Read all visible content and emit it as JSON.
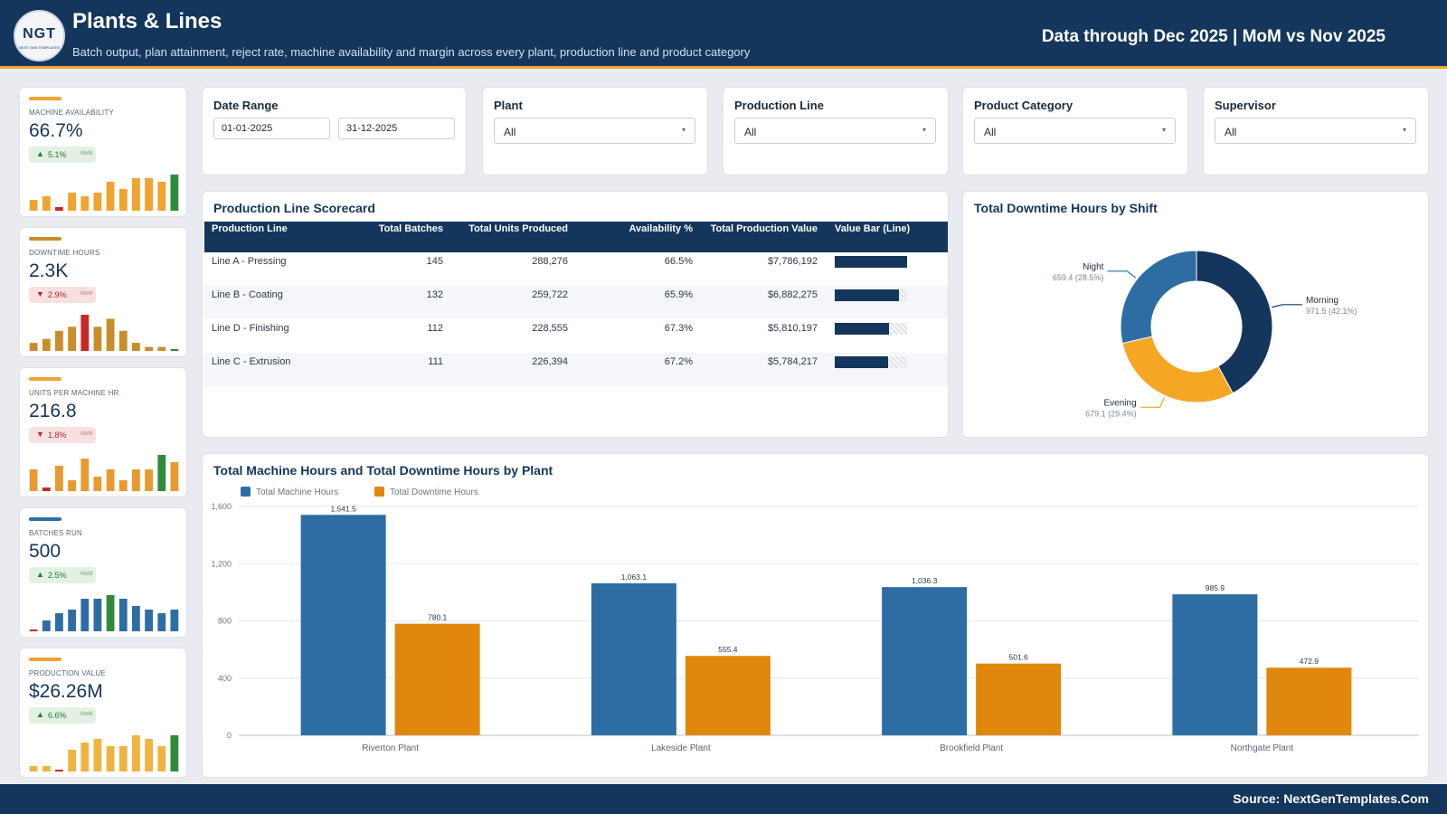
{
  "header": {
    "logo_text": "NGT",
    "logo_small": "NEXT GEN TEMPLATES",
    "title": "Plants & Lines",
    "subtitle": "Batch output, plan attainment, reject rate, machine availability and margin across every plant, production line and product category",
    "period": "Data through Dec 2025 | MoM vs Nov 2025"
  },
  "kpis": [
    {
      "label": "MACHINE AVAILABILITY",
      "value": "66.7%",
      "direction": "up",
      "change": "5.1%",
      "mom": "MoM",
      "accent": "#f0a330",
      "spark": [
        3,
        4,
        1,
        5,
        4,
        5,
        8,
        6,
        9,
        9,
        8,
        10
      ],
      "spark_colors": [
        "#f0a330",
        "#f0a330",
        "#c62828",
        "#f0a330",
        "#f0a330",
        "#f0a330",
        "#f0a330",
        "#f0a330",
        "#f0a330",
        "#f0a330",
        "#f0a330",
        "#2e8b3a"
      ]
    },
    {
      "label": "DOWNTIME HOURS",
      "value": "2.3K",
      "direction": "down",
      "change": "2.9%",
      "mom": "MoM",
      "accent": "#c98d2c",
      "spark": [
        2,
        3,
        5,
        6,
        9,
        6,
        8,
        5,
        2,
        1,
        1,
        0.4
      ],
      "spark_colors": [
        "#c98d2c",
        "#c98d2c",
        "#c98d2c",
        "#c98d2c",
        "#c62828",
        "#c98d2c",
        "#c98d2c",
        "#c98d2c",
        "#c98d2c",
        "#c98d2c",
        "#c98d2c",
        "#2e8b3a"
      ]
    },
    {
      "label": "UNITS PER MACHINE HR",
      "value": "216.8",
      "direction": "down",
      "change": "1.8%",
      "mom": "MoM",
      "accent": "#f0a330",
      "spark": [
        6,
        1,
        7,
        3,
        9,
        4,
        6,
        3,
        6,
        6,
        10,
        8
      ],
      "spark_colors": [
        "#e89a30",
        "#c62828",
        "#e89a30",
        "#e89a30",
        "#e89a30",
        "#e89a30",
        "#e89a30",
        "#e89a30",
        "#e89a30",
        "#e89a30",
        "#2e8b3a",
        "#e89a30"
      ]
    },
    {
      "label": "BATCHES RUN",
      "value": "500",
      "direction": "up",
      "change": "2.5%",
      "mom": "MoM",
      "accent": "#2e6da4",
      "spark": [
        0.5,
        3,
        5,
        6,
        9,
        9,
        10,
        9,
        7,
        6,
        5,
        6
      ],
      "spark_colors": [
        "#c62828",
        "#2e6da4",
        "#2e6da4",
        "#2e6da4",
        "#2e6da4",
        "#2e6da4",
        "#2e8b3a",
        "#2e6da4",
        "#2e6da4",
        "#2e6da4",
        "#2e6da4",
        "#2e6da4"
      ]
    },
    {
      "label": "PRODUCTION VALUE",
      "value": "$26.26M",
      "direction": "up",
      "change": "6.6%",
      "mom": "MoM",
      "accent": "#f0a330",
      "spark": [
        1.5,
        1.5,
        0.5,
        6,
        8,
        9,
        7,
        7,
        10,
        9,
        7,
        10
      ],
      "spark_colors": [
        "#f0b340",
        "#f0b340",
        "#c62828",
        "#f0b340",
        "#f0b340",
        "#f0b340",
        "#f0b340",
        "#f0b340",
        "#f0b340",
        "#f0b340",
        "#f0b340",
        "#2e8b3a"
      ]
    }
  ],
  "filters": {
    "date_range": {
      "label": "Date Range",
      "start": "01-01-2025",
      "end": "31-12-2025"
    },
    "plant": {
      "label": "Plant",
      "value": "All"
    },
    "production_line": {
      "label": "Production Line",
      "value": "All"
    },
    "product_category": {
      "label": "Product Category",
      "value": "All"
    },
    "supervisor": {
      "label": "Supervisor",
      "value": "All"
    },
    "caret": "▾"
  },
  "scorecard": {
    "title": "Production Line Scorecard",
    "columns": [
      "Production Line",
      "Total Batches",
      "Total Units Produced",
      "Availability %",
      "Total Production Value",
      "Value Bar (Line)"
    ],
    "rows": [
      {
        "line": "Line A - Pressing",
        "batches": "145",
        "units": "288,276",
        "availability": "66.5%",
        "value": "$7,786,192",
        "bar": 1.0
      },
      {
        "line": "Line B - Coating",
        "batches": "132",
        "units": "259,722",
        "availability": "65.9%",
        "value": "$6,882,275",
        "bar": 0.884
      },
      {
        "line": "Line D - Finishing",
        "batches": "112",
        "units": "228,555",
        "availability": "67.3%",
        "value": "$5,810,197",
        "bar": 0.746
      },
      {
        "line": "Line C - Extrusion",
        "batches": "111",
        "units": "226,394",
        "availability": "67.2%",
        "value": "$5,784,217",
        "bar": 0.743
      }
    ],
    "bar_color": "#14365c"
  },
  "donut": {
    "title": "Total Downtime Hours by Shift",
    "chart_data": {
      "type": "pie",
      "slices": [
        {
          "name": "Morning",
          "value": 971.5,
          "label": "971.5 (42.1%)",
          "color": "#14365c"
        },
        {
          "name": "Evening",
          "value": 679.1,
          "label": "679.1 (29.4%)",
          "color": "#f5a623"
        },
        {
          "name": "Night",
          "value": 659.4,
          "label": "659.4 (28.5%)",
          "color": "#2e6da4"
        }
      ]
    }
  },
  "bars": {
    "title": "Total Machine Hours and Total Downtime Hours by Plant",
    "chart_data": {
      "type": "bar",
      "categories": [
        "Riverton Plant",
        "Lakeside Plant",
        "Brookfield Plant",
        "Northgate Plant"
      ],
      "series": [
        {
          "name": "Total Machine Hours",
          "values": [
            1541.5,
            1063.1,
            1036.3,
            985.9
          ],
          "labels": [
            "1,541.5",
            "1,063.1",
            "1,036.3",
            "985.9"
          ],
          "color": "#2e6da4"
        },
        {
          "name": "Total Downtime Hours",
          "values": [
            780.1,
            555.4,
            501.6,
            472.9
          ],
          "labels": [
            "780.1",
            "555.4",
            "501.6",
            "472.9"
          ],
          "color": "#e0870c"
        }
      ],
      "ylim": [
        0,
        1600
      ],
      "yticks": [
        0,
        400,
        800,
        1200,
        1600
      ],
      "ytick_labels": [
        "0",
        "400",
        "800",
        "1,200",
        "1,600"
      ],
      "grid": true,
      "legend": "top-left"
    }
  },
  "footer": {
    "source": "Source: NextGenTemplates.Com"
  }
}
